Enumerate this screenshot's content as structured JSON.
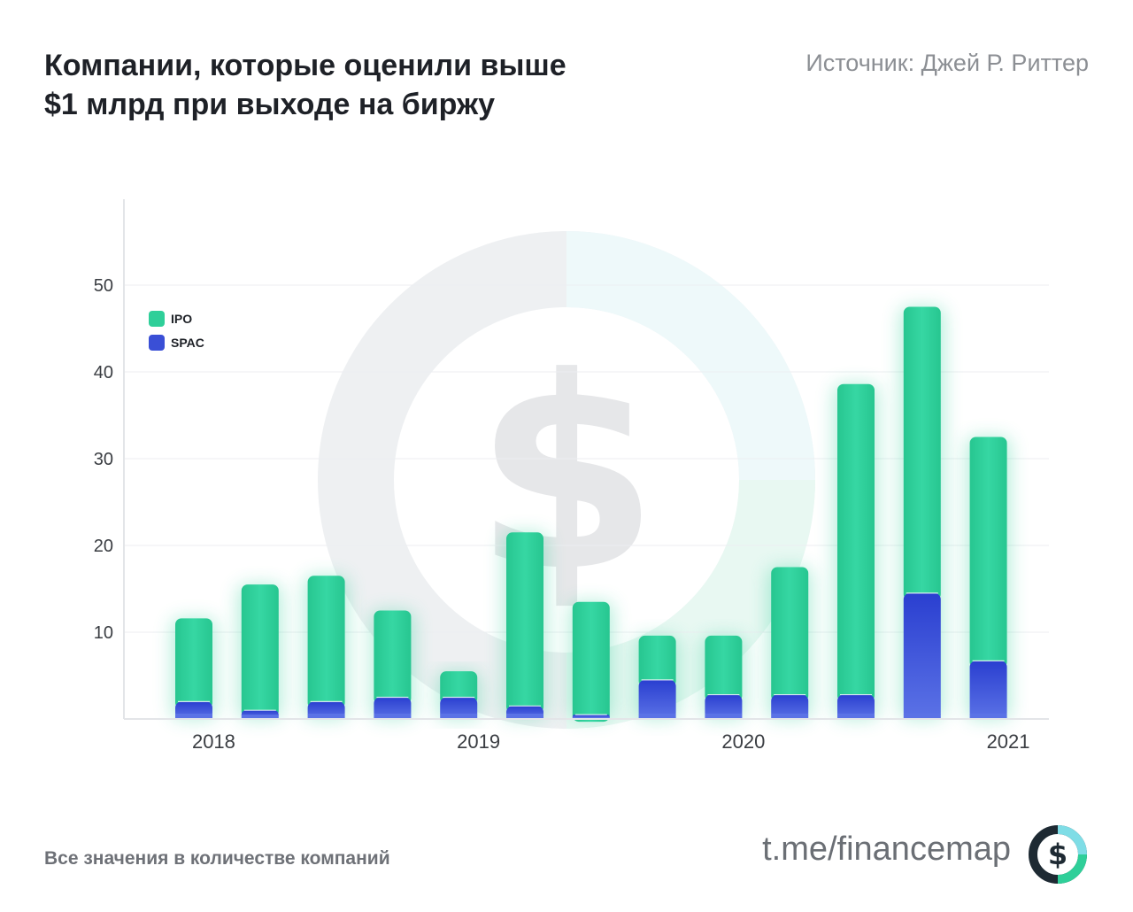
{
  "header": {
    "title_line1": "Компании, которые оценили выше",
    "title_line2": "$1 млрд при выходе на биржу",
    "source": "Источник: Джей Р. Риттер"
  },
  "footer": {
    "note": "Все значения в количестве компаний",
    "link": "t.me/financemap",
    "logo_icon": "dollar-ring-logo-icon"
  },
  "chart_data": {
    "type": "bar",
    "stacked": true,
    "categories": [
      "",
      "",
      "",
      "",
      "",
      "",
      "",
      "",
      "",
      "",
      "",
      "",
      ""
    ],
    "x_tick_labels": [
      {
        "label": "2018",
        "at_bar": 0.3
      },
      {
        "label": "2019",
        "at_bar": 4.3
      },
      {
        "label": "2020",
        "at_bar": 8.3
      },
      {
        "label": "2021",
        "at_bar": 12.3
      }
    ],
    "series": [
      {
        "name": "SPAC",
        "color": "#3a4fd6",
        "values": [
          2,
          1,
          2,
          2.5,
          2.5,
          1.5,
          0.5,
          4.5,
          2.8,
          2.8,
          2.8,
          14.5,
          6.7
        ]
      },
      {
        "name": "IPO",
        "color": "#2fcf99",
        "values": [
          9.6,
          14.5,
          14.5,
          10,
          3,
          20,
          13,
          5.1,
          6.8,
          14.7,
          35.8,
          33,
          25.8
        ]
      }
    ],
    "y_ticks": [
      10,
      20,
      30,
      40,
      50
    ],
    "ylim": [
      0,
      60
    ],
    "grid": true,
    "legend_position": "top-left",
    "xlabel": "",
    "ylabel": ""
  }
}
